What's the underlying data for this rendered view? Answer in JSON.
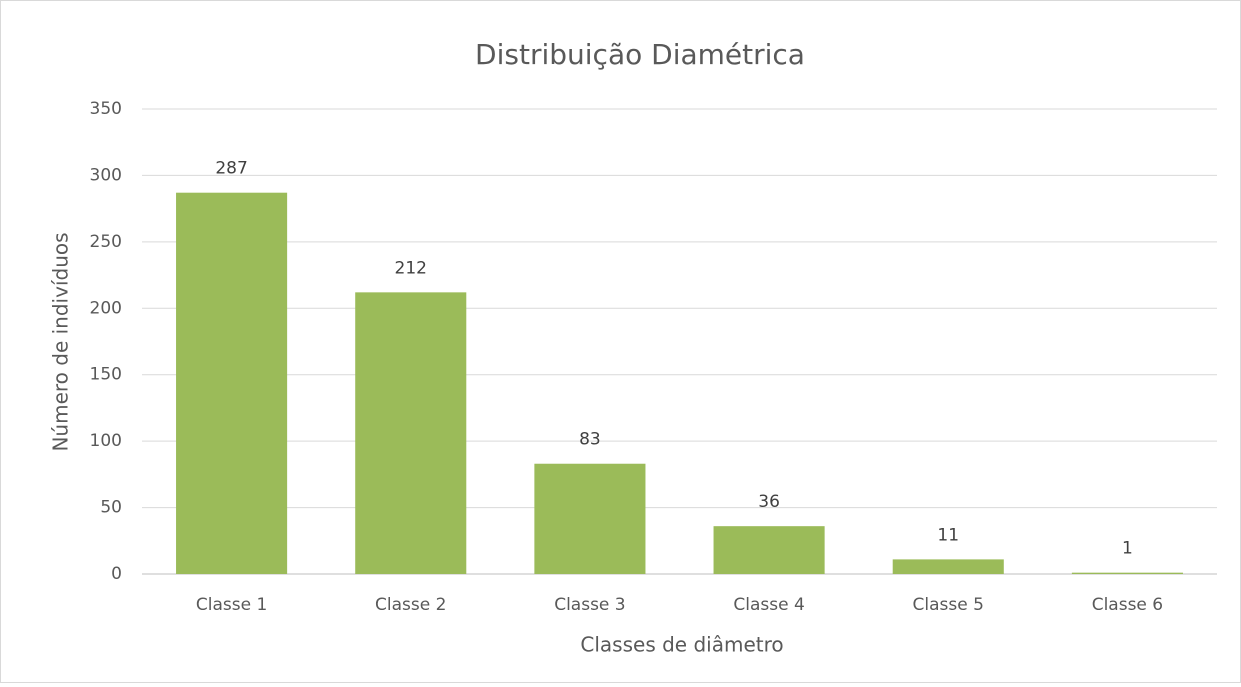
{
  "chart_data": {
    "type": "bar",
    "title": "Distribuição Diamétrica",
    "x_label": "Classes de diâmetro",
    "y_label": "Número de indivíduos",
    "categories": [
      "Classe 1",
      "Classe 2",
      "Classe 3",
      "Classe 4",
      "Classe 5",
      "Classe 6"
    ],
    "values": [
      287,
      212,
      83,
      36,
      11,
      1
    ],
    "color": "#9bbb59",
    "ylim": [
      0,
      350
    ],
    "yticks": [
      0,
      50,
      100,
      150,
      200,
      250,
      300,
      350
    ],
    "grid": true
  }
}
